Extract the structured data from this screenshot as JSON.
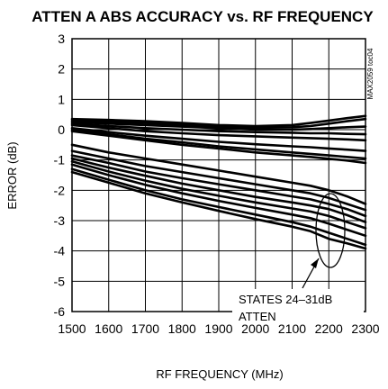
{
  "chart_data": {
    "type": "line",
    "title": "ATTEN A ABS ACCURACY vs. RF FREQUENCY",
    "xlabel": "RF FREQUENCY (MHz)",
    "ylabel": "ERROR (dB)",
    "xlim": [
      1500,
      2300
    ],
    "ylim": [
      -6,
      3
    ],
    "xticks": [
      "1500",
      "1600",
      "1700",
      "1800",
      "1900",
      "2000",
      "2100",
      "2200",
      "2300"
    ],
    "yticks": [
      "3",
      "2",
      "1",
      "0",
      "-1",
      "-2",
      "-3",
      "-4",
      "-5",
      "-6"
    ],
    "grid": true,
    "side_label": "MAX2059 toc04",
    "annotation": {
      "line1": "STATES 24–31dB",
      "line2": "ATTEN"
    },
    "x": [
      1500,
      1600,
      1700,
      1800,
      1900,
      2000,
      2100,
      2150,
      2200,
      2250,
      2300
    ],
    "series": [
      {
        "values": [
          0.35,
          0.32,
          0.28,
          0.22,
          0.15,
          0.12,
          0.15,
          0.22,
          0.3,
          0.38,
          0.45
        ]
      },
      {
        "values": [
          0.3,
          0.26,
          0.22,
          0.16,
          0.1,
          0.06,
          0.08,
          0.12,
          0.2,
          0.28,
          0.35
        ]
      },
      {
        "values": [
          0.25,
          0.2,
          0.15,
          0.1,
          0.05,
          0.0,
          0.0,
          0.02,
          0.05,
          0.08,
          0.1
        ]
      },
      {
        "values": [
          0.2,
          0.12,
          0.05,
          0.0,
          -0.05,
          -0.08,
          -0.1,
          -0.12,
          -0.12,
          -0.14,
          -0.15
        ]
      },
      {
        "values": [
          0.15,
          0.05,
          -0.05,
          -0.12,
          -0.18,
          -0.22,
          -0.26,
          -0.28,
          -0.3,
          -0.32,
          -0.35
        ]
      },
      {
        "values": [
          0.05,
          -0.08,
          -0.2,
          -0.3,
          -0.4,
          -0.48,
          -0.55,
          -0.58,
          -0.62,
          -0.66,
          -0.7
        ]
      },
      {
        "values": [
          0.0,
          -0.15,
          -0.3,
          -0.42,
          -0.55,
          -0.65,
          -0.75,
          -0.8,
          -0.85,
          -0.9,
          -0.95
        ]
      },
      {
        "values": [
          -0.05,
          -0.2,
          -0.35,
          -0.5,
          -0.62,
          -0.75,
          -0.85,
          -0.9,
          -0.96,
          -1.02,
          -1.1
        ]
      },
      {
        "values": [
          -0.5,
          -0.75,
          -0.95,
          -1.15,
          -1.35,
          -1.55,
          -1.75,
          -1.85,
          -2.0,
          -2.2,
          -2.45
        ]
      },
      {
        "values": [
          -0.7,
          -0.95,
          -1.2,
          -1.4,
          -1.6,
          -1.8,
          -2.0,
          -2.1,
          -2.25,
          -2.45,
          -2.65
        ]
      },
      {
        "values": [
          -0.85,
          -1.1,
          -1.38,
          -1.6,
          -1.8,
          -2.0,
          -2.2,
          -2.3,
          -2.45,
          -2.62,
          -2.85
        ]
      },
      {
        "values": [
          -0.95,
          -1.25,
          -1.52,
          -1.78,
          -2.0,
          -2.22,
          -2.4,
          -2.5,
          -2.62,
          -2.82,
          -3.05
        ]
      },
      {
        "values": [
          -1.05,
          -1.38,
          -1.68,
          -1.95,
          -2.18,
          -2.4,
          -2.6,
          -2.7,
          -2.85,
          -3.05,
          -3.25
        ]
      },
      {
        "values": [
          -1.15,
          -1.5,
          -1.82,
          -2.1,
          -2.35,
          -2.58,
          -2.8,
          -2.92,
          -3.1,
          -3.3,
          -3.5
        ]
      },
      {
        "values": [
          -1.3,
          -1.65,
          -2.0,
          -2.3,
          -2.55,
          -2.8,
          -3.05,
          -3.2,
          -3.4,
          -3.6,
          -3.8
        ]
      },
      {
        "values": [
          -1.4,
          -1.75,
          -2.1,
          -2.4,
          -2.68,
          -2.95,
          -3.2,
          -3.35,
          -3.6,
          -3.75,
          -3.92
        ]
      }
    ]
  }
}
